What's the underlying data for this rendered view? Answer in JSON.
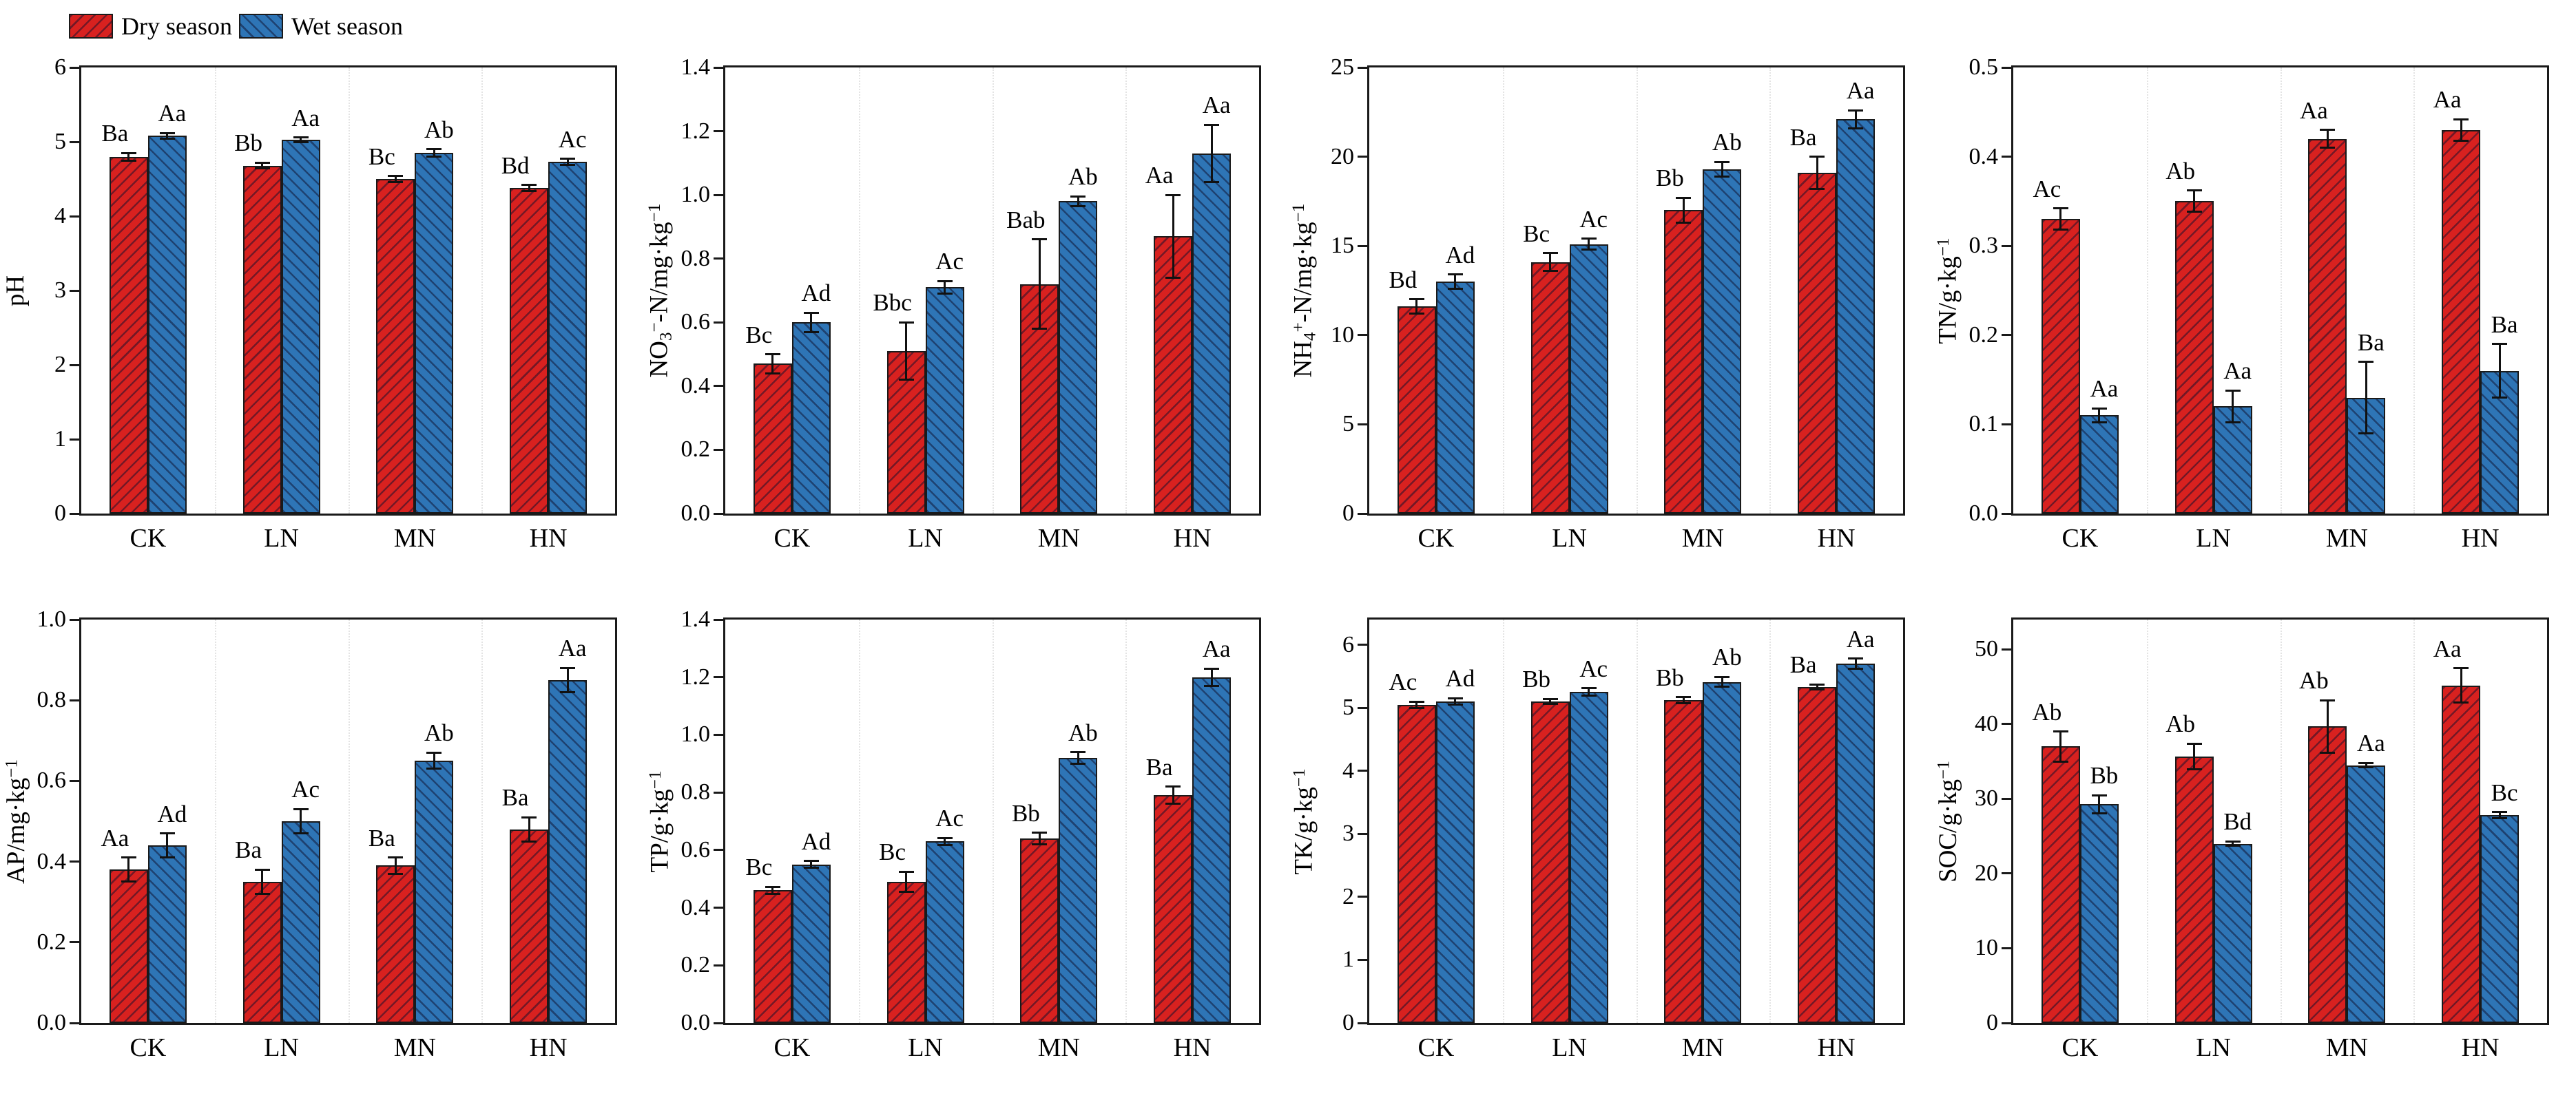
{
  "legend": {
    "items": [
      {
        "label": "Dry season",
        "color": "#d8211f",
        "hatch": "slash"
      },
      {
        "label": "Wet season",
        "color": "#2e75b6",
        "hatch": "backslash"
      }
    ]
  },
  "style": {
    "bar_border": "#1a1a1a",
    "axis_color": "#1a1a1a",
    "hatch_line_color": "rgba(15,15,45,0.5)",
    "separator_color": "#e3e3e3",
    "dry_color": "#d8211f",
    "wet_color": "#2e75b6"
  },
  "chart_data": [
    {
      "id": "ph",
      "type": "bar",
      "ylabel": "pH",
      "ylabel_parts": [
        {
          "t": "pH"
        }
      ],
      "ylim": [
        0,
        6
      ],
      "yticks": [
        0,
        1,
        2,
        3,
        4,
        5,
        6
      ],
      "ytick_labels": [
        "0",
        "1",
        "2",
        "3",
        "4",
        "5",
        "6"
      ],
      "categories": [
        "CK",
        "LN",
        "MN",
        "HN"
      ],
      "grid": "dotted-vertical-separators",
      "legend_position": "figure-top-left",
      "series": [
        {
          "name": "Dry season",
          "values": [
            4.8,
            4.68,
            4.5,
            4.38
          ],
          "errors": [
            0.05,
            0.04,
            0.04,
            0.04
          ],
          "sig_labels": [
            "Ba",
            "Bb",
            "Bc",
            "Bd"
          ]
        },
        {
          "name": "Wet season",
          "values": [
            5.08,
            5.03,
            4.85,
            4.73
          ],
          "errors": [
            0.04,
            0.03,
            0.05,
            0.04
          ],
          "sig_labels": [
            "Aa",
            "Aa",
            "Ab",
            "Ac"
          ]
        }
      ]
    },
    {
      "id": "no3n",
      "type": "bar",
      "ylabel": "NO₃⁻-N/mg·kg⁻¹",
      "ylabel_parts": [
        {
          "t": "NO"
        },
        {
          "t": "3",
          "s": "sub"
        },
        {
          "t": "−",
          "s": "sup"
        },
        {
          "t": "-N/mg·kg"
        },
        {
          "t": "−1",
          "s": "sup"
        }
      ],
      "ylim": [
        0,
        1.4
      ],
      "yticks": [
        0,
        0.2,
        0.4,
        0.6,
        0.8,
        1.0,
        1.2,
        1.4
      ],
      "ytick_labels": [
        "0.0",
        "0.2",
        "0.4",
        "0.6",
        "0.8",
        "1.0",
        "1.2",
        "1.4"
      ],
      "categories": [
        "CK",
        "LN",
        "MN",
        "HN"
      ],
      "grid": "dotted-vertical-separators",
      "series": [
        {
          "name": "Dry season",
          "values": [
            0.47,
            0.51,
            0.72,
            0.87
          ],
          "errors": [
            0.03,
            0.09,
            0.14,
            0.13
          ],
          "sig_labels": [
            "Bc",
            "Bbc",
            "Bab",
            "Aa"
          ]
        },
        {
          "name": "Wet season",
          "values": [
            0.6,
            0.71,
            0.98,
            1.13
          ],
          "errors": [
            0.03,
            0.02,
            0.015,
            0.09
          ],
          "sig_labels": [
            "Ad",
            "Ac",
            "Ab",
            "Aa"
          ]
        }
      ]
    },
    {
      "id": "nh4n",
      "type": "bar",
      "ylabel": "NH₄⁺-N/mg·kg⁻¹",
      "ylabel_parts": [
        {
          "t": "NH"
        },
        {
          "t": "4",
          "s": "sub"
        },
        {
          "t": "+",
          "s": "sup"
        },
        {
          "t": "-N/mg·kg"
        },
        {
          "t": "−1",
          "s": "sup"
        }
      ],
      "ylim": [
        0,
        25
      ],
      "yticks": [
        0,
        5,
        10,
        15,
        20,
        25
      ],
      "ytick_labels": [
        "0",
        "5",
        "10",
        "15",
        "20",
        "25"
      ],
      "categories": [
        "CK",
        "LN",
        "MN",
        "HN"
      ],
      "grid": "dotted-vertical-separators",
      "series": [
        {
          "name": "Dry season",
          "values": [
            11.6,
            14.1,
            17.0,
            19.1
          ],
          "errors": [
            0.4,
            0.5,
            0.7,
            0.9
          ],
          "sig_labels": [
            "Bd",
            "Bc",
            "Bb",
            "Ba"
          ]
        },
        {
          "name": "Wet season",
          "values": [
            13.0,
            15.1,
            19.3,
            22.1
          ],
          "errors": [
            0.4,
            0.3,
            0.4,
            0.5
          ],
          "sig_labels": [
            "Ad",
            "Ac",
            "Ab",
            "Aa"
          ]
        }
      ]
    },
    {
      "id": "tn",
      "type": "bar",
      "ylabel": "TN/g·kg⁻¹",
      "ylabel_parts": [
        {
          "t": "TN/g·kg"
        },
        {
          "t": "−1",
          "s": "sup"
        }
      ],
      "ylim": [
        0,
        0.5
      ],
      "yticks": [
        0,
        0.1,
        0.2,
        0.3,
        0.4,
        0.5
      ],
      "ytick_labels": [
        "0.0",
        "0.1",
        "0.2",
        "0.3",
        "0.4",
        "0.5"
      ],
      "categories": [
        "CK",
        "LN",
        "MN",
        "HN"
      ],
      "grid": "dotted-vertical-separators",
      "series": [
        {
          "name": "Dry season",
          "values": [
            0.33,
            0.35,
            0.42,
            0.43
          ],
          "errors": [
            0.012,
            0.012,
            0.01,
            0.012
          ],
          "sig_labels": [
            "Ac",
            "Ab",
            "Aa",
            "Aa"
          ]
        },
        {
          "name": "Wet season",
          "values": [
            0.11,
            0.12,
            0.13,
            0.16
          ],
          "errors": [
            0.008,
            0.018,
            0.04,
            0.03
          ],
          "sig_labels": [
            "Aa",
            "Aa",
            "Ba",
            "Ba"
          ]
        }
      ]
    },
    {
      "id": "ap",
      "type": "bar",
      "ylabel": "AP/mg·kg⁻¹",
      "ylabel_parts": [
        {
          "t": "AP/mg·kg"
        },
        {
          "t": "−1",
          "s": "sup"
        }
      ],
      "ylim": [
        0,
        1.0
      ],
      "yticks": [
        0,
        0.2,
        0.4,
        0.6,
        0.8,
        1.0
      ],
      "ytick_labels": [
        "0.0",
        "0.2",
        "0.4",
        "0.6",
        "0.8",
        "1.0"
      ],
      "categories": [
        "CK",
        "LN",
        "MN",
        "HN"
      ],
      "grid": "dotted-vertical-separators",
      "series": [
        {
          "name": "Dry season",
          "values": [
            0.38,
            0.35,
            0.39,
            0.48
          ],
          "errors": [
            0.03,
            0.03,
            0.02,
            0.03
          ],
          "sig_labels": [
            "Aa",
            "Ba",
            "Ba",
            "Ba"
          ]
        },
        {
          "name": "Wet season",
          "values": [
            0.44,
            0.5,
            0.65,
            0.85
          ],
          "errors": [
            0.03,
            0.03,
            0.02,
            0.03
          ],
          "sig_labels": [
            "Ad",
            "Ac",
            "Ab",
            "Aa"
          ]
        }
      ]
    },
    {
      "id": "tp",
      "type": "bar",
      "ylabel": "TP/g·kg⁻¹",
      "ylabel_parts": [
        {
          "t": "TP/g·kg"
        },
        {
          "t": "−1",
          "s": "sup"
        }
      ],
      "ylim": [
        0,
        1.4
      ],
      "yticks": [
        0,
        0.2,
        0.4,
        0.6,
        0.8,
        1.0,
        1.2,
        1.4
      ],
      "ytick_labels": [
        "0.0",
        "0.2",
        "0.4",
        "0.6",
        "0.8",
        "1.0",
        "1.2",
        "1.4"
      ],
      "categories": [
        "CK",
        "LN",
        "MN",
        "HN"
      ],
      "grid": "dotted-vertical-separators",
      "series": [
        {
          "name": "Dry season",
          "values": [
            0.46,
            0.49,
            0.64,
            0.79
          ],
          "errors": [
            0.012,
            0.035,
            0.02,
            0.03
          ],
          "sig_labels": [
            "Bc",
            "Bc",
            "Bb",
            "Ba"
          ]
        },
        {
          "name": "Wet season",
          "values": [
            0.55,
            0.63,
            0.92,
            1.2
          ],
          "errors": [
            0.012,
            0.012,
            0.02,
            0.03
          ],
          "sig_labels": [
            "Ad",
            "Ac",
            "Ab",
            "Aa"
          ]
        }
      ]
    },
    {
      "id": "tk",
      "type": "bar",
      "ylabel": "TK/g·kg⁻¹",
      "ylabel_parts": [
        {
          "t": "TK/g·kg"
        },
        {
          "t": "−1",
          "s": "sup"
        }
      ],
      "ylim": [
        0,
        6.4
      ],
      "yticks": [
        0,
        1,
        2,
        3,
        4,
        5,
        6
      ],
      "ytick_labels": [
        "0",
        "1",
        "2",
        "3",
        "4",
        "5",
        "6"
      ],
      "categories": [
        "CK",
        "LN",
        "MN",
        "HN"
      ],
      "grid": "dotted-vertical-separators",
      "series": [
        {
          "name": "Dry season",
          "values": [
            5.05,
            5.1,
            5.12,
            5.33
          ],
          "errors": [
            0.05,
            0.04,
            0.05,
            0.04
          ],
          "sig_labels": [
            "Ac",
            "Bb",
            "Bb",
            "Ba"
          ]
        },
        {
          "name": "Wet season",
          "values": [
            5.1,
            5.25,
            5.41,
            5.7
          ],
          "errors": [
            0.05,
            0.06,
            0.08,
            0.08
          ],
          "sig_labels": [
            "Ad",
            "Ac",
            "Ab",
            "Aa"
          ]
        }
      ]
    },
    {
      "id": "soc",
      "type": "bar",
      "ylabel": "SOC/g·kg⁻¹",
      "ylabel_parts": [
        {
          "t": "SOC/g·kg"
        },
        {
          "t": "−1",
          "s": "sup"
        }
      ],
      "ylim": [
        0,
        54
      ],
      "yticks": [
        0,
        10,
        20,
        30,
        40,
        50
      ],
      "ytick_labels": [
        "0",
        "10",
        "20",
        "30",
        "40",
        "50"
      ],
      "categories": [
        "CK",
        "LN",
        "MN",
        "HN"
      ],
      "grid": "dotted-vertical-separators",
      "series": [
        {
          "name": "Dry season",
          "values": [
            37.0,
            35.7,
            39.7,
            45.2
          ],
          "errors": [
            2.0,
            1.7,
            3.5,
            2.3
          ],
          "sig_labels": [
            "Ab",
            "Ab",
            "Ab",
            "Aa"
          ]
        },
        {
          "name": "Wet season",
          "values": [
            29.3,
            24.0,
            34.5,
            27.8
          ],
          "errors": [
            1.2,
            0.3,
            0.3,
            0.4
          ],
          "sig_labels": [
            "Bb",
            "Bd",
            "Aa",
            "Bc"
          ]
        }
      ]
    }
  ]
}
